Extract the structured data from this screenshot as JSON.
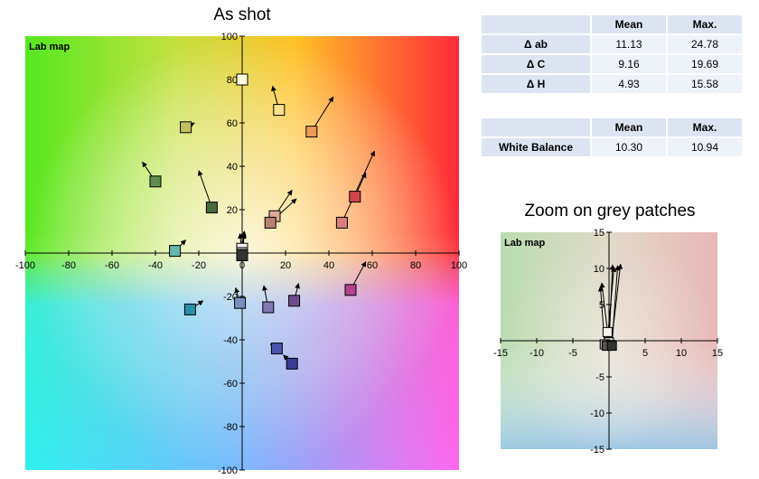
{
  "page": {
    "main_title": "As shot",
    "zoom_title": "Zoom on grey patches"
  },
  "table1": {
    "headers": [
      "",
      "Mean",
      "Max."
    ],
    "rows": [
      {
        "label": "Δ ab",
        "mean": "11.13",
        "max": "24.78"
      },
      {
        "label": "Δ C",
        "mean": "9.16",
        "max": "19.69"
      },
      {
        "label": "Δ H",
        "mean": "4.93",
        "max": "15.58"
      }
    ]
  },
  "table2": {
    "headers": [
      "",
      "Mean",
      "Max."
    ],
    "rows": [
      {
        "label": "White Balance",
        "mean": "10.30",
        "max": "10.94"
      }
    ]
  },
  "chart_data": [
    {
      "type": "scatter",
      "title": "As shot",
      "plot_label": "Lab map",
      "xlim": [
        -100,
        100
      ],
      "ylim": [
        -100,
        100
      ],
      "xticks": [
        -100,
        -80,
        -60,
        -40,
        -20,
        0,
        20,
        40,
        60,
        80,
        100
      ],
      "yticks": [
        -100,
        -80,
        -60,
        -40,
        -20,
        20,
        40,
        60,
        80,
        100
      ],
      "background": "Lab color map",
      "patches": [
        {
          "a": 0,
          "b": 80,
          "ta": 0,
          "tb": 80,
          "color": "#fffde0"
        },
        {
          "a": 17,
          "b": 66,
          "ta": 14,
          "tb": 77,
          "color": "#ffe08a"
        },
        {
          "a": 32,
          "b": 56,
          "ta": 42,
          "tb": 72,
          "color": "#ec9a55"
        },
        {
          "a": -26,
          "b": 58,
          "ta": -22,
          "tb": 60,
          "color": "#c2c060"
        },
        {
          "a": -40,
          "b": 33,
          "ta": -46,
          "tb": 42,
          "color": "#5f8f4e"
        },
        {
          "a": -14,
          "b": 21,
          "ta": -20,
          "tb": 38,
          "color": "#476a3b"
        },
        {
          "a": 15,
          "b": 17,
          "ta": 23,
          "tb": 29,
          "color": "#dca998"
        },
        {
          "a": 13,
          "b": 14,
          "ta": 25,
          "tb": 25,
          "color": "#b8826f"
        },
        {
          "a": 52,
          "b": 26,
          "ta": 57,
          "tb": 37,
          "color": "#d1434b"
        },
        {
          "a": 46,
          "b": 14,
          "ta": 61,
          "tb": 47,
          "color": "#db7d7d"
        },
        {
          "a": -31,
          "b": 1,
          "ta": -26,
          "tb": 6,
          "color": "#63b6ae"
        },
        {
          "a": 50,
          "b": -17,
          "ta": 57,
          "tb": -4,
          "color": "#b3438d"
        },
        {
          "a": -24,
          "b": -26,
          "ta": -18,
          "tb": -22,
          "color": "#2b90a9"
        },
        {
          "a": -1,
          "b": -23,
          "ta": -3,
          "tb": -16,
          "color": "#7a8ec0"
        },
        {
          "a": 12,
          "b": -25,
          "ta": 10,
          "tb": -15,
          "color": "#8079b2"
        },
        {
          "a": 24,
          "b": -22,
          "ta": 26,
          "tb": -14,
          "color": "#6e4a8c"
        },
        {
          "a": 16,
          "b": -44,
          "ta": 13,
          "tb": -42,
          "color": "#4a55aa"
        },
        {
          "a": 23,
          "b": -51,
          "ta": 19,
          "tb": -47,
          "color": "#3a3d96"
        },
        {
          "a": 0,
          "b": 2,
          "ta": 1,
          "tb": 10,
          "color": "#f2f2f2"
        },
        {
          "a": 0,
          "b": 0,
          "ta": 1,
          "tb": 9,
          "color": "#c8c8c8"
        },
        {
          "a": 0,
          "b": -1,
          "ta": -1,
          "tb": 9,
          "color": "#a0a0a0"
        },
        {
          "a": 0,
          "b": -1,
          "ta": 1,
          "tb": 10,
          "color": "#7a7a7a"
        },
        {
          "a": 0,
          "b": -1,
          "ta": 0,
          "tb": 9,
          "color": "#555555"
        },
        {
          "a": 0,
          "b": -1,
          "ta": 1,
          "tb": 9,
          "color": "#333333"
        }
      ]
    },
    {
      "type": "scatter",
      "title": "Zoom on grey patches",
      "plot_label": "Lab map",
      "xlim": [
        -15,
        15
      ],
      "ylim": [
        -15,
        15
      ],
      "xticks": [
        -15,
        -10,
        -5,
        5,
        10,
        15
      ],
      "yticks": [
        -15,
        -10,
        -5,
        5,
        10,
        15
      ],
      "background": "Lab color map (zoomed)",
      "patches": [
        {
          "a": -0.2,
          "b": 1.2,
          "ta": -1.0,
          "tb": 8.0,
          "color": "#f2f2f2"
        },
        {
          "a": 0.0,
          "b": -0.2,
          "ta": 0.5,
          "tb": 10.5,
          "color": "#c8c8c8"
        },
        {
          "a": -0.6,
          "b": -0.5,
          "ta": -1.2,
          "tb": 7.5,
          "color": "#a0a0a0"
        },
        {
          "a": 0.3,
          "b": -0.6,
          "ta": 1.6,
          "tb": 10.6,
          "color": "#7a7a7a"
        },
        {
          "a": -0.3,
          "b": -0.7,
          "ta": 0.7,
          "tb": 10.2,
          "color": "#555555"
        },
        {
          "a": 0.4,
          "b": -0.7,
          "ta": 1.2,
          "tb": 10.4,
          "color": "#333333"
        }
      ]
    }
  ]
}
